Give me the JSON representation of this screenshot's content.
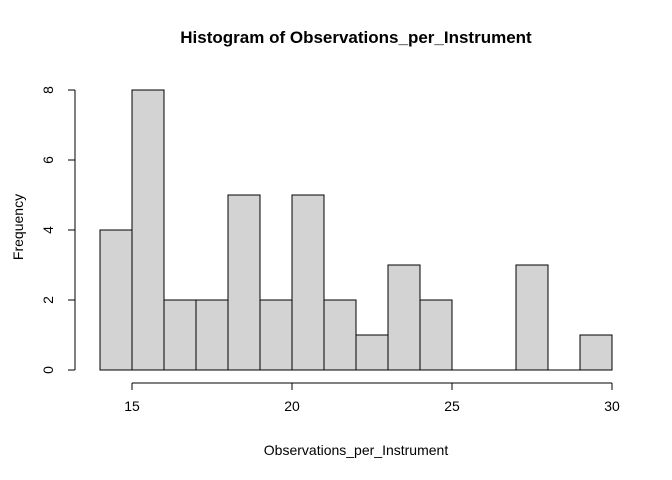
{
  "figure": {
    "background": "#ffffff"
  },
  "chart_data": {
    "type": "bar",
    "subtype": "histogram",
    "title": "Histogram of Observations_per_Instrument",
    "xlabel": "Observations_per_Instrument",
    "ylabel": "Frequency",
    "breaks": [
      14,
      15,
      16,
      17,
      18,
      19,
      20,
      21,
      22,
      23,
      24,
      25,
      26,
      27,
      28,
      29,
      30
    ],
    "counts": [
      4,
      8,
      2,
      2,
      5,
      2,
      5,
      2,
      1,
      3,
      2,
      0,
      0,
      3,
      0,
      1
    ],
    "xlim": [
      14,
      30
    ],
    "ylim": [
      0,
      8
    ],
    "x_ticks": [
      15,
      20,
      25,
      30
    ],
    "y_ticks": [
      0,
      2,
      4,
      6,
      8
    ],
    "grid": false,
    "legend": "none",
    "colors": {
      "bar_fill": "#d3d3d3",
      "bar_stroke": "#000000",
      "axis": "#000000",
      "text": "#000000"
    }
  }
}
